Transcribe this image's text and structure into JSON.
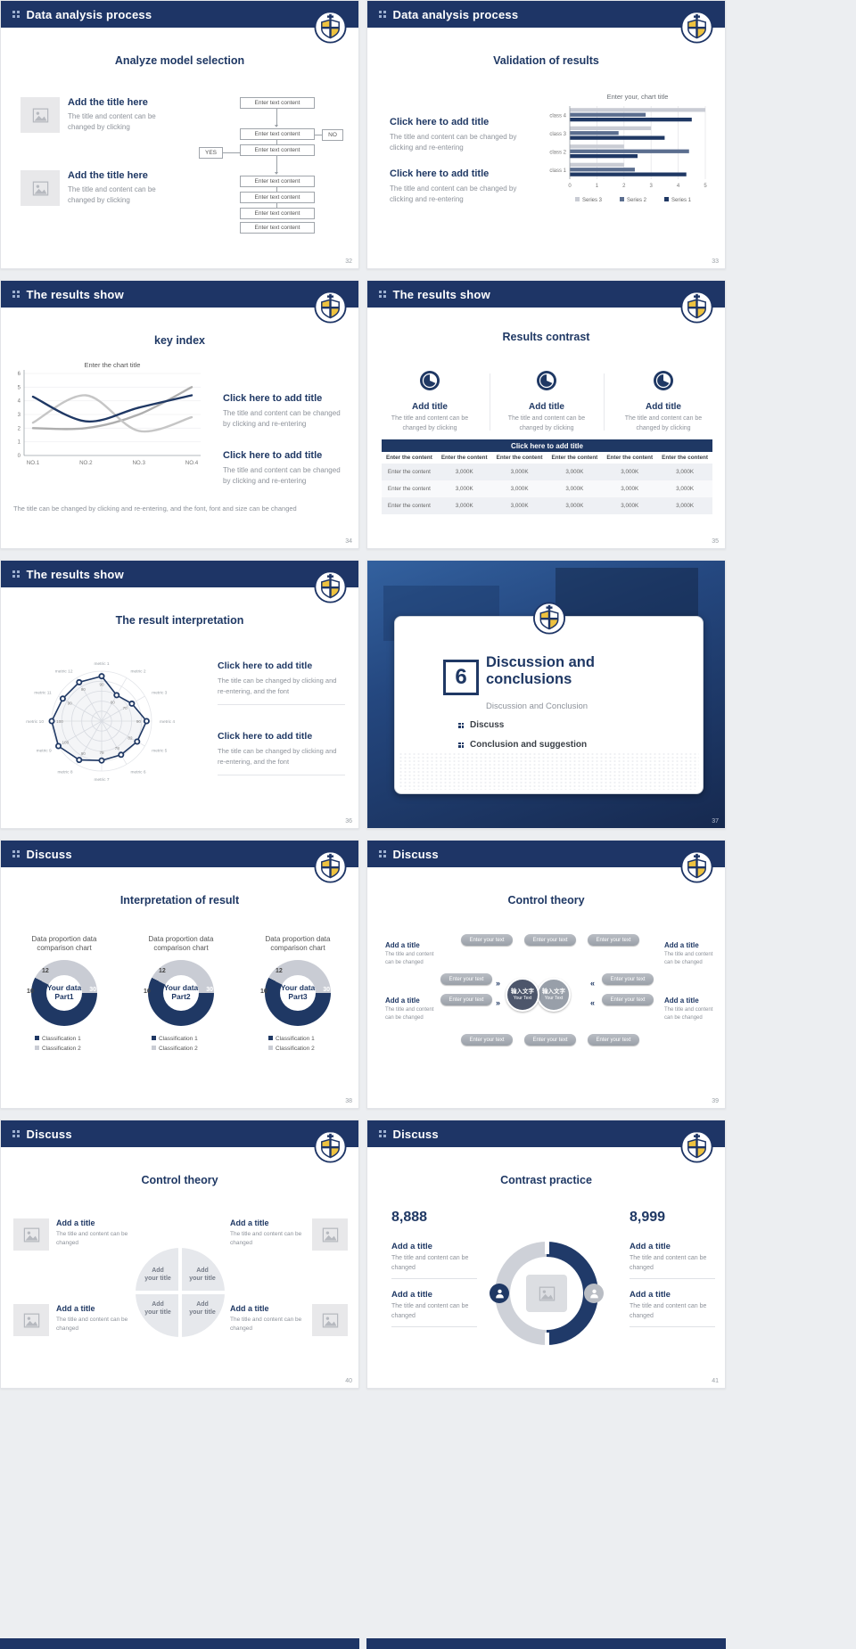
{
  "page": {
    "background": "#eceef1",
    "accent": "#1f3864"
  },
  "slides": [
    {
      "header": "Data analysis process",
      "page_num": "32",
      "title": "Analyze model selection",
      "items": [
        {
          "title": "Add the title here",
          "desc": "The title and content can be changed by clicking"
        },
        {
          "title": "Add the title here",
          "desc": "The title and content can be changed by clicking"
        }
      ],
      "flowchart": {
        "boxes": [
          "Enter text content",
          "Enter text content",
          "Enter text content",
          "Enter text content",
          "Enter text content",
          "Enter text content",
          "Enter text content"
        ],
        "yes_label": "YES",
        "no_label": "NO"
      }
    },
    {
      "header": "Data analysis process",
      "page_num": "33",
      "title": "Validation of results",
      "items": [
        {
          "title": "Click here to add title",
          "desc": "The title and content can be changed by clicking and re-entering"
        },
        {
          "title": "Click here to add title",
          "desc": "The title and content can be changed by clicking and re-entering"
        }
      ],
      "chart_data": {
        "type": "bar",
        "orientation": "horizontal",
        "title": "Enter your, chart title",
        "categories": [
          "class 1",
          "class 2",
          "class 3",
          "class 4"
        ],
        "series": [
          {
            "name": "Series 1",
            "color": "#1f3864",
            "values": [
              4.3,
              2.5,
              3.5,
              4.5
            ]
          },
          {
            "name": "Series 2",
            "color": "#5b6e8f",
            "values": [
              2.4,
              4.4,
              1.8,
              2.8
            ]
          },
          {
            "name": "Series 3",
            "color": "#c9ccd4",
            "values": [
              2.0,
              2.0,
              3.0,
              5.0
            ]
          }
        ],
        "xlim": [
          0,
          5
        ],
        "xticks": [
          0,
          1,
          2,
          3,
          4,
          5
        ],
        "legend_order": [
          "Series 3",
          "Series 2",
          "Series 1"
        ]
      }
    },
    {
      "header": "The results show",
      "page_num": "34",
      "title": "key index",
      "chart_data": {
        "type": "line",
        "title": "Enter the chart title",
        "x": [
          "NO.1",
          "NO.2",
          "NO.3",
          "NO.4"
        ],
        "ylim": [
          0,
          6
        ],
        "yticks": [
          0,
          1,
          2,
          3,
          4,
          5,
          6
        ],
        "series": [
          {
            "name": "Series 1",
            "color": "#1f3864",
            "values": [
              4.3,
              2.5,
              3.5,
              4.4
            ]
          },
          {
            "name": "Series 2",
            "color": "#c6c6c6",
            "values": [
              2.4,
              4.4,
              1.8,
              2.8
            ]
          },
          {
            "name": "Series 3",
            "color": "#aeaeae",
            "values": [
              2.0,
              2.0,
              3.0,
              5.0
            ]
          }
        ]
      },
      "items": [
        {
          "title": "Click here to add title",
          "desc": "The title and content can be changed by clicking and re-entering"
        },
        {
          "title": "Click here to add title",
          "desc": "The title and content can be changed by clicking and re-entering"
        }
      ],
      "note": "The title can be changed by clicking and re-entering, and the font, font and size can be changed"
    },
    {
      "header": "The results show",
      "page_num": "35",
      "title": "Results contrast",
      "features": [
        {
          "title": "Add title",
          "desc": "The title and content can be changed by clicking"
        },
        {
          "title": "Add title",
          "desc": "The title and content can be changed by clicking"
        },
        {
          "title": "Add title",
          "desc": "The title and content can be changed by clicking"
        }
      ],
      "table": {
        "title": "Click here to add title",
        "headers": [
          "Enter the content",
          "Enter the content",
          "Enter the content",
          "Enter the content",
          "Enter the content",
          "Enter the content"
        ],
        "rows": [
          [
            "Enter the content",
            "3,000K",
            "3,000K",
            "3,000K",
            "3,000K",
            "3,000K"
          ],
          [
            "Enter the content",
            "3,000K",
            "3,000K",
            "3,000K",
            "3,000K",
            "3,000K"
          ],
          [
            "Enter the content",
            "3,000K",
            "3,000K",
            "3,000K",
            "3,000K",
            "3,000K"
          ]
        ]
      }
    },
    {
      "header": "The results show",
      "page_num": "36",
      "title": "The result interpretation",
      "chart_data": {
        "type": "radar",
        "axes": [
          "metric 1",
          "metric 2",
          "metric 3",
          "metric 4",
          "metric 5",
          "metric 6",
          "metric 7",
          "metric 8",
          "metric 9",
          "metric 10",
          "metric 11",
          "metric 12"
        ],
        "values": [
          90,
          60,
          70,
          90,
          82,
          78,
          79,
          90,
          100,
          100,
          90,
          90
        ],
        "max": 100,
        "color": "#1f3864"
      },
      "items": [
        {
          "title": "Click here to add  title",
          "desc": "The title can be changed by clicking and re-entering, and the font"
        },
        {
          "title": "Click here to add  title",
          "desc": "The title can be changed by clicking and re-entering, and the font"
        }
      ]
    },
    {
      "page_num": "37",
      "section": {
        "number": "6",
        "title": "Discussion and conclusions",
        "subtitle": "Discussion and Conclusion",
        "bullets": [
          "Discuss",
          "Conclusion and suggestion"
        ]
      }
    },
    {
      "header": "Discuss",
      "page_num": "38",
      "title": "Interpretation of result",
      "caption_line1": "Data proportion data",
      "caption_line2": "comparison chart",
      "labels": {
        "a": "12",
        "b": "10",
        "c": "30"
      },
      "legend": [
        "Classification 1",
        "Classification 2"
      ],
      "donut_centers": [
        {
          "line1": "Your data",
          "line2": "Part1"
        },
        {
          "line1": "Your data",
          "line2": "Part2"
        },
        {
          "line1": "Your data",
          "line2": "Part3"
        }
      ],
      "chart_data": [
        {
          "type": "pie",
          "caption": "Data proportion data comparison chart",
          "center": "Your data Part1",
          "labels": [
            12,
            10,
            30
          ],
          "slices": [
            {
              "name": "Classification 1",
              "value": 30,
              "color": "#1f3864"
            },
            {
              "name": "Classification 2",
              "value": 22,
              "color": "#c9ccd4"
            }
          ]
        },
        {
          "type": "pie",
          "caption": "Data proportion data comparison chart",
          "center": "Your data Part2",
          "labels": [
            12,
            10,
            30
          ],
          "slices": [
            {
              "name": "Classification 1",
              "value": 30,
              "color": "#1f3864"
            },
            {
              "name": "Classification 2",
              "value": 22,
              "color": "#c9ccd4"
            }
          ]
        },
        {
          "type": "pie",
          "caption": "Data proportion data comparison chart",
          "center": "Your data Part3",
          "labels": [
            12,
            10,
            30
          ],
          "slices": [
            {
              "name": "Classification 1",
              "value": 30,
              "color": "#1f3864"
            },
            {
              "name": "Classification 2",
              "value": 22,
              "color": "#c9ccd4"
            }
          ]
        }
      ]
    },
    {
      "header": "Discuss",
      "page_num": "39",
      "title": "Control theory",
      "corner_blocks": [
        {
          "title": "Add a title",
          "desc": "The title and content can be changed"
        },
        {
          "title": "Add a title",
          "desc": "The title and content can be changed"
        },
        {
          "title": "Add a title",
          "desc": "The title and content can be changed"
        },
        {
          "title": "Add a title",
          "desc": "The title and content can be changed"
        }
      ],
      "pill": "Enter your text",
      "center_circles": [
        {
          "zh": "输入文字",
          "en": "Your Text"
        },
        {
          "zh": "输入文字",
          "en": "Your Text"
        }
      ]
    },
    {
      "header": "Discuss",
      "page_num": "40",
      "title": "Control theory",
      "blocks": [
        {
          "title": "Add a title",
          "desc": "The title and content can be changed"
        },
        {
          "title": "Add a title",
          "desc": "The title and content can be changed"
        },
        {
          "title": "Add a title",
          "desc": "The title and content can be changed"
        },
        {
          "title": "Add a title",
          "desc": "The title and content can be changed"
        }
      ],
      "quad_line1": "Add",
      "quad_line2": "your title"
    },
    {
      "header": "Discuss",
      "page_num": "41",
      "title": "Contrast practice",
      "left_number": "8,888",
      "right_number": "8,999",
      "blocks": [
        {
          "title": "Add a title",
          "desc": "The title and content can be changed"
        },
        {
          "title": "Add a title",
          "desc": "The title and content can be changed"
        },
        {
          "title": "Add a title",
          "desc": "The title and content can be changed"
        },
        {
          "title": "Add a title",
          "desc": "The title and content can be changed"
        }
      ]
    }
  ]
}
